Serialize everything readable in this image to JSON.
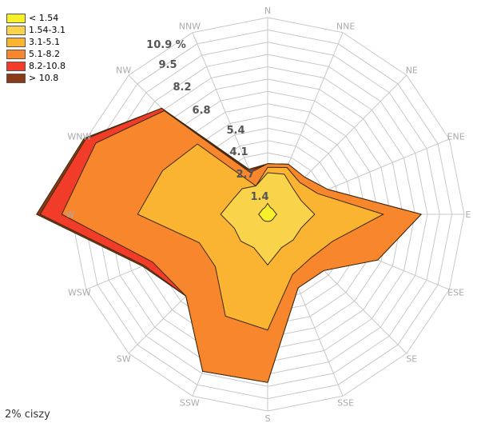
{
  "chart_data": {
    "type": "wind-rose",
    "unit": "%",
    "directions": [
      "N",
      "NNE",
      "NE",
      "ENE",
      "E",
      "ESE",
      "SE",
      "SSE",
      "S",
      "SSW",
      "SW",
      "WSW",
      "W",
      "WNW",
      "NW",
      "NNW"
    ],
    "ring_labels": [
      "1.4",
      "2.7",
      "4.1",
      "5.4",
      "6.8",
      "8.2",
      "9.5",
      "10.9 %"
    ],
    "rmax": 10.9,
    "grid": true,
    "legend_position": "top-left",
    "bins": [
      {
        "label": "< 1.54",
        "color": "#f5f02a",
        "values": [
          0.6,
          0.4,
          0.4,
          0.4,
          0.5,
          0.4,
          0.4,
          0.4,
          0.4,
          0.4,
          0.4,
          0.4,
          0.5,
          0.4,
          0.4,
          0.4
        ]
      },
      {
        "label": "1.54-3.1",
        "color": "#f9d44a",
        "values": [
          2.3,
          2.4,
          2.0,
          2.0,
          2.6,
          2.0,
          2.0,
          2.0,
          2.8,
          2.0,
          2.1,
          2.0,
          2.6,
          2.1,
          2.0,
          1.7
        ]
      },
      {
        "label": "3.1-5.1",
        "color": "#fbb432",
        "values": [
          2.6,
          2.8,
          2.5,
          3.0,
          6.4,
          3.9,
          3.4,
          3.6,
          6.4,
          6.1,
          4.1,
          4.1,
          7.2,
          6.3,
          5.5,
          1.7
        ]
      },
      {
        "label": "5.1-8.2",
        "color": "#f7862c",
        "values": [
          2.8,
          3.0,
          2.9,
          3.6,
          8.5,
          6.6,
          4.4,
          4.4,
          9.3,
          9.4,
          6.4,
          6.9,
          11.4,
          10.3,
          8.1,
          2.5
        ]
      },
      {
        "label": "8.2-10.8",
        "color": "#f03c28",
        "values": [
          2.8,
          3.0,
          2.9,
          3.6,
          8.5,
          6.6,
          4.4,
          4.4,
          9.3,
          9.4,
          6.4,
          7.4,
          12.6,
          10.9,
          8.3,
          2.6
        ]
      },
      {
        "label": "> 10.8",
        "color": "#8b3a14",
        "values": [
          2.8,
          3.0,
          2.9,
          3.6,
          8.5,
          6.6,
          4.4,
          4.4,
          9.3,
          9.4,
          6.4,
          7.5,
          12.8,
          11.0,
          8.3,
          2.7
        ]
      }
    ]
  },
  "calm": "2% ciszy"
}
